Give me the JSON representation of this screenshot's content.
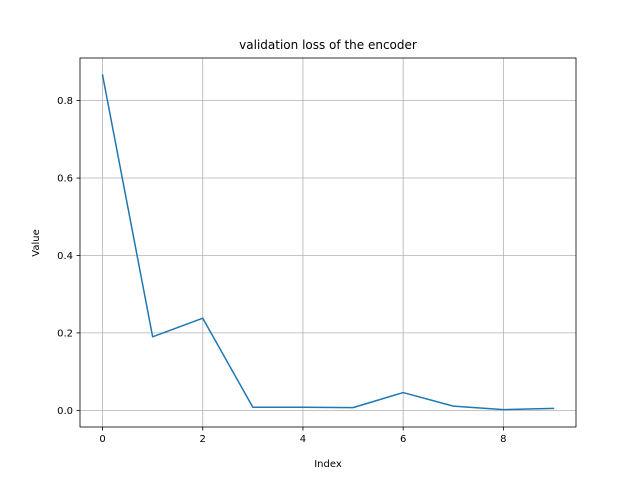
{
  "chart_data": {
    "type": "line",
    "title": "validation loss of the encoder",
    "xlabel": "Index",
    "ylabel": "Value",
    "xlim": [
      -0.45,
      9.45
    ],
    "ylim": [
      -0.043,
      0.91
    ],
    "grid": true,
    "x_ticks": [
      0,
      2,
      4,
      6,
      8
    ],
    "x_tick_labels": [
      "0",
      "2",
      "4",
      "6",
      "8"
    ],
    "y_ticks": [
      0.0,
      0.2,
      0.4,
      0.6,
      0.8
    ],
    "y_tick_labels": [
      "0.0",
      "0.2",
      "0.4",
      "0.6",
      "0.8"
    ],
    "series": [
      {
        "color": "#1f77b4",
        "x": [
          0,
          1,
          2,
          3,
          4,
          5,
          6,
          7,
          8,
          9
        ],
        "values": [
          0.866,
          0.19,
          0.238,
          0.008,
          0.008,
          0.007,
          0.046,
          0.011,
          0.002,
          0.005
        ]
      }
    ]
  }
}
